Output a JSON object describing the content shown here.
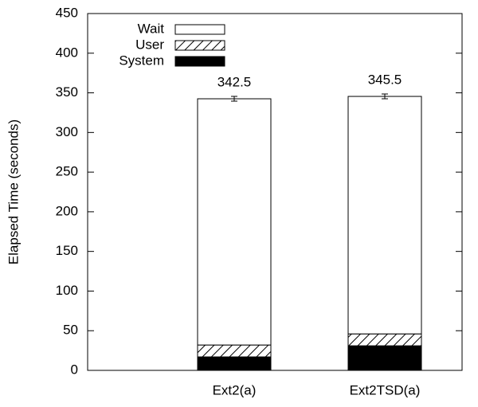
{
  "chart_data": {
    "type": "stacked-bar",
    "categories": [
      "Ext2(a)",
      "Ext2TSD(a)"
    ],
    "series": [
      {
        "name": "System",
        "color": "#000000",
        "values": [
          17,
          31
        ]
      },
      {
        "name": "User",
        "color": "hatch",
        "values": [
          15,
          15
        ]
      },
      {
        "name": "Wait",
        "color": "#ffffff",
        "values": [
          310.5,
          299.5
        ]
      }
    ],
    "totals": [
      342.5,
      345.5
    ],
    "errors": [
      3,
      3
    ],
    "ylabel": "Elapsed Time (seconds)",
    "ylim": [
      0,
      450
    ],
    "yticks": [
      0,
      50,
      100,
      150,
      200,
      250,
      300,
      350,
      400,
      450
    ],
    "legend": "upper left"
  }
}
